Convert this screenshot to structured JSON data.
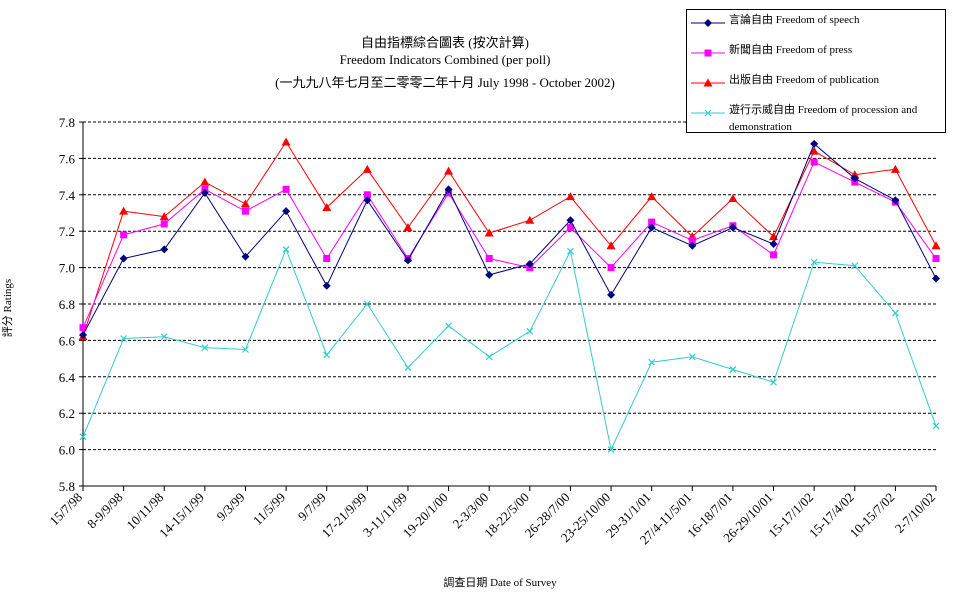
{
  "chart_data": {
    "type": "line",
    "title_zh": "自由指標綜合圖表 (按次計算)",
    "title_en": "Freedom Indicators Combined (per poll)",
    "subtitle": "(一九九八年七月至二零零二年十月 July 1998 - October 2002)",
    "xlabel": "調查日期 Date of Survey",
    "ylabel": "評分 Ratings",
    "ylim": [
      5.8,
      7.8
    ],
    "yticks": [
      "5.8",
      "6.0",
      "6.2",
      "6.4",
      "6.6",
      "6.8",
      "7.0",
      "7.2",
      "7.4",
      "7.6",
      "7.8"
    ],
    "grid": true,
    "legend_position": "top-right",
    "tick_labels": [
      "15/7/98",
      "8-9/9/98",
      "10/11/98",
      "14-15/1/99",
      "9/3/99",
      "11/5/99",
      "9/7/99",
      "17-21/9/99",
      "3-11/11/99",
      "19-20/1/00",
      "2-3/3/00",
      "18-22/5/00",
      "26-28/7/00",
      "23-25/10/00",
      "29-31/1/01",
      "27/4-11/5/01",
      "16-18/7/01",
      "26-29/10/01",
      "15-17/1/02",
      "15-17/4/02",
      "10-15/7/02",
      "2-7/10/02"
    ],
    "series": [
      {
        "name": "言論自由 Freedom of speech",
        "color": "#000080",
        "marker": "diamond",
        "values": [
          6.63,
          7.05,
          7.1,
          7.41,
          7.06,
          7.31,
          6.9,
          7.37,
          7.04,
          7.43,
          6.96,
          7.02,
          7.26,
          6.85,
          7.22,
          7.12,
          7.22,
          7.13,
          7.68,
          7.49,
          7.37,
          6.94
        ]
      },
      {
        "name": "新聞自由 Freedom of press",
        "color": "#ff00ff",
        "marker": "square",
        "values": [
          6.67,
          7.18,
          7.24,
          7.43,
          7.31,
          7.43,
          7.05,
          7.4,
          7.05,
          7.41,
          7.05,
          7.0,
          7.22,
          7.0,
          7.25,
          7.15,
          7.23,
          7.07,
          7.58,
          7.47,
          7.36,
          7.05
        ]
      },
      {
        "name": "出版自由 Freedom of publication",
        "color": "#ff0000",
        "marker": "triangle",
        "values": [
          6.62,
          7.31,
          7.28,
          7.47,
          7.35,
          7.69,
          7.33,
          7.54,
          7.22,
          7.53,
          7.19,
          7.26,
          7.39,
          7.12,
          7.39,
          7.17,
          7.38,
          7.17,
          7.64,
          7.51,
          7.54,
          7.12
        ]
      },
      {
        "name": "遊行示威自由 Freedom of procession and demonstration",
        "color": "#33cccc",
        "marker": "x",
        "values": [
          6.07,
          6.61,
          6.62,
          6.56,
          6.55,
          7.1,
          6.52,
          6.8,
          6.45,
          6.68,
          6.51,
          6.65,
          7.09,
          6.0,
          6.48,
          6.51,
          6.44,
          6.37,
          7.03,
          7.01,
          6.75,
          6.13
        ]
      }
    ]
  }
}
